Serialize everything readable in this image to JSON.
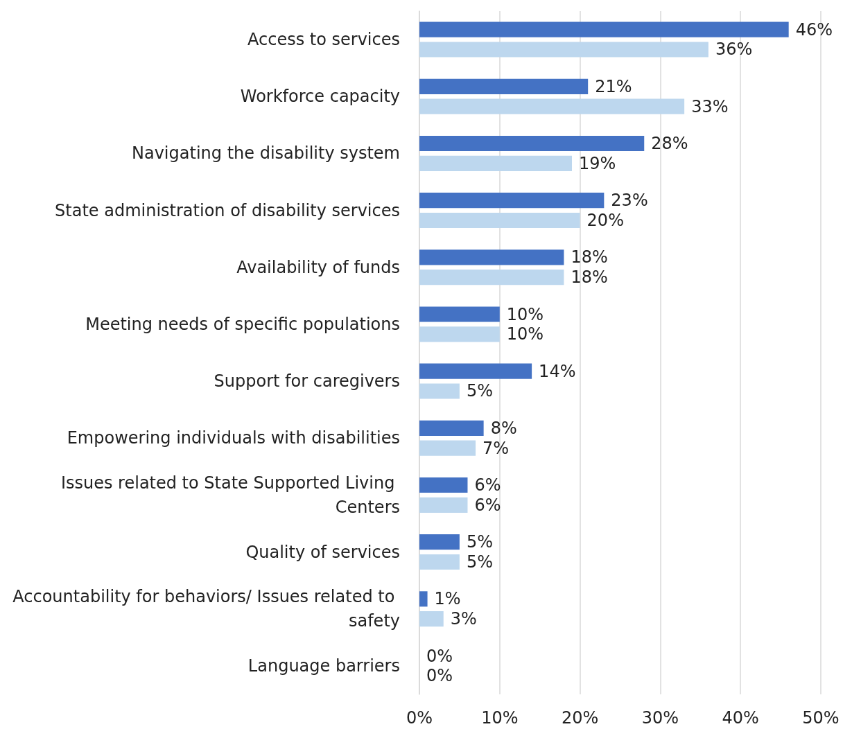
{
  "chart_data": {
    "type": "bar",
    "orientation": "horizontal",
    "categories": [
      "Access to services",
      "Workforce capacity",
      "Navigating the disability system",
      "State administration of disability services",
      "Availability of funds",
      "Meeting needs of specific populations",
      "Support for caregivers",
      "Empowering individuals with disabilities",
      "Issues related to State Supported Living Centers",
      "Quality of services",
      "Accountability for behaviors/ Issues related to safety",
      "Language barriers"
    ],
    "series": [
      {
        "color": "#4472c4",
        "values": [
          46,
          21,
          28,
          23,
          18,
          10,
          14,
          8,
          6,
          5,
          1,
          0
        ],
        "value_labels": [
          "46%",
          "21%",
          "28%",
          "23%",
          "18%",
          "10%",
          "14%",
          "8%",
          "6%",
          "5%",
          "1%",
          "0%"
        ]
      },
      {
        "color": "#bdd7ee",
        "values": [
          36,
          33,
          19,
          20,
          18,
          10,
          5,
          7,
          6,
          5,
          3,
          0
        ],
        "value_labels": [
          "36%",
          "33%",
          "19%",
          "20%",
          "18%",
          "10%",
          "5%",
          "7%",
          "6%",
          "5%",
          "3%",
          "0%"
        ]
      }
    ],
    "xlim": [
      0,
      50
    ],
    "xticks": [
      {
        "value": 0,
        "label": "0%"
      },
      {
        "value": 10,
        "label": "10%"
      },
      {
        "value": 20,
        "label": "20%"
      },
      {
        "value": 30,
        "label": "30%"
      },
      {
        "value": 40,
        "label": "40%"
      },
      {
        "value": 50,
        "label": "50%"
      }
    ],
    "grid": "x"
  }
}
